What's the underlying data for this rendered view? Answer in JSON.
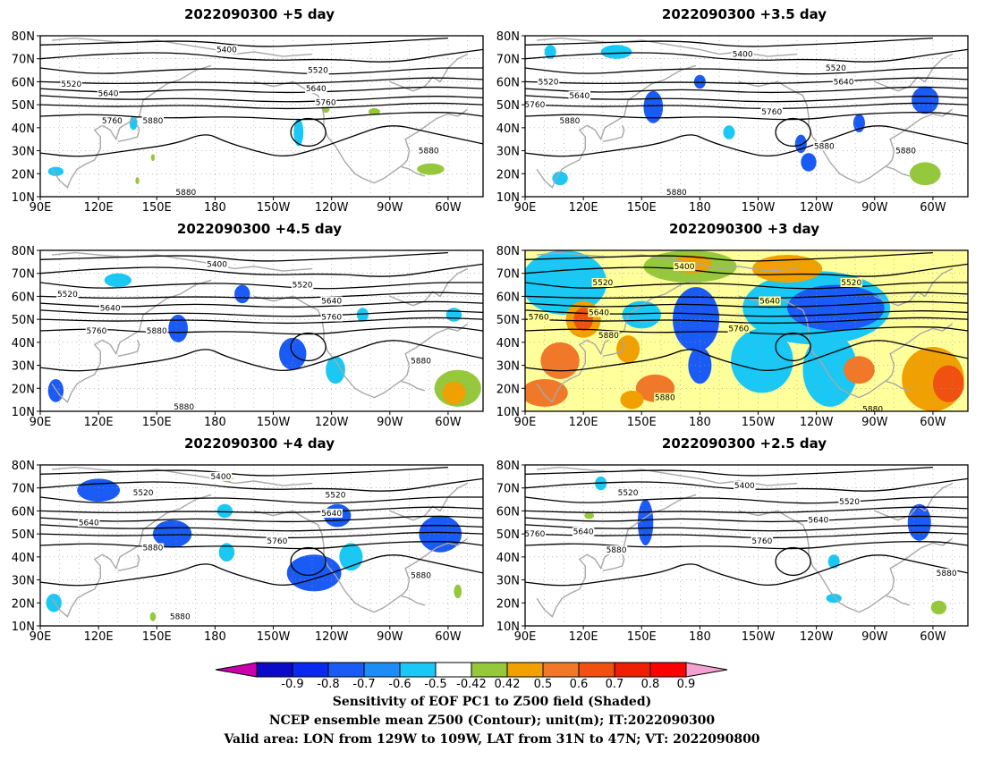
{
  "colors": {
    "coast": "#a8a8a8",
    "contour": "#000000",
    "scale": [
      "#cc00aa",
      "#0a0ac8",
      "#0a28f0",
      "#1a5af5",
      "#1e8cf5",
      "#19c8f5",
      "#ffffff",
      "#96c83c",
      "#f0a000",
      "#f07828",
      "#f05010",
      "#f01e00",
      "#ff0000",
      "#f5a0d2"
    ]
  },
  "map": {
    "lat_labels": [
      "80N",
      "70N",
      "60N",
      "50N",
      "40N",
      "30N",
      "20N",
      "10N"
    ],
    "lon_labels": [
      "90E",
      "120E",
      "150E",
      "180",
      "150W",
      "120W",
      "90W",
      "60W"
    ]
  },
  "panels": [
    {
      "title": "2022090300  +5 day",
      "contour_labels": [
        {
          "text": "5400",
          "lon": 186,
          "lat": 74
        },
        {
          "text": "5520",
          "lon": 233,
          "lat": 65
        },
        {
          "text": "5520",
          "lon": 106,
          "lat": 59
        },
        {
          "text": "5640",
          "lon": 125,
          "lat": 55
        },
        {
          "text": "5640",
          "lon": 232,
          "lat": 57
        },
        {
          "text": "5760",
          "lon": 237,
          "lat": 51
        },
        {
          "text": "5760",
          "lon": 127,
          "lat": 43
        },
        {
          "text": "5880",
          "lon": 148,
          "lat": 43
        },
        {
          "text": "5880",
          "lon": 290,
          "lat": 30
        },
        {
          "text": "5880",
          "lon": 165,
          "lat": 12
        }
      ],
      "blobs": [
        {
          "lon": 138,
          "lat": 42,
          "rx": 2,
          "ry": 3,
          "c": 1
        },
        {
          "lon": 223,
          "lat": 38,
          "rx": 2.5,
          "ry": 6,
          "c": 1
        },
        {
          "lon": 98,
          "lat": 21,
          "rx": 4,
          "ry": 2,
          "c": 1
        },
        {
          "lon": 237,
          "lat": 48,
          "rx": 2,
          "ry": 1.5,
          "c": 0
        },
        {
          "lon": 262,
          "lat": 47,
          "rx": 3,
          "ry": 1.5,
          "c": 0
        },
        {
          "lon": 148,
          "lat": 27,
          "rx": 1,
          "ry": 1.5,
          "c": 0
        },
        {
          "lon": 140,
          "lat": 17,
          "rx": 1,
          "ry": 1.5,
          "c": 0
        },
        {
          "lon": 291,
          "lat": 22,
          "rx": 7,
          "ry": 2.5,
          "c": 0
        }
      ]
    },
    {
      "title": "2022090300  +3.5 day",
      "contour_labels": [
        {
          "text": "5400",
          "lon": 202,
          "lat": 72
        },
        {
          "text": "5520",
          "lon": 250,
          "lat": 66
        },
        {
          "text": "5520",
          "lon": 102,
          "lat": 60
        },
        {
          "text": "5640",
          "lon": 118,
          "lat": 54
        },
        {
          "text": "5640",
          "lon": 254,
          "lat": 60
        },
        {
          "text": "5760",
          "lon": 95,
          "lat": 50
        },
        {
          "text": "5760",
          "lon": 217,
          "lat": 47
        },
        {
          "text": "5880",
          "lon": 113,
          "lat": 43
        },
        {
          "text": "5880",
          "lon": 244,
          "lat": 32
        },
        {
          "text": "5880",
          "lon": 286,
          "lat": 30
        },
        {
          "text": "5880",
          "lon": 168,
          "lat": 12
        }
      ],
      "blobs": [
        {
          "lon": 103,
          "lat": 73,
          "rx": 3,
          "ry": 3,
          "c": 1
        },
        {
          "lon": 137,
          "lat": 73,
          "rx": 8,
          "ry": 3,
          "c": 1
        },
        {
          "lon": 156,
          "lat": 49,
          "rx": 5,
          "ry": 7,
          "c": 2
        },
        {
          "lon": 180,
          "lat": 60,
          "rx": 3,
          "ry": 3,
          "c": 2
        },
        {
          "lon": 195,
          "lat": 38,
          "rx": 3,
          "ry": 3,
          "c": 1
        },
        {
          "lon": 232,
          "lat": 33,
          "rx": 3,
          "ry": 4,
          "c": 2
        },
        {
          "lon": 262,
          "lat": 42,
          "rx": 3,
          "ry": 4,
          "c": 2
        },
        {
          "lon": 296,
          "lat": 52,
          "rx": 7,
          "ry": 6,
          "c": 2
        },
        {
          "lon": 236,
          "lat": 25,
          "rx": 4,
          "ry": 4,
          "c": 2
        },
        {
          "lon": 108,
          "lat": 18,
          "rx": 4,
          "ry": 3,
          "c": 1
        },
        {
          "lon": 296,
          "lat": 20,
          "rx": 8,
          "ry": 5,
          "c": 0
        }
      ]
    },
    {
      "title": "2022090300  +4.5 day",
      "contour_labels": [
        {
          "text": "5400",
          "lon": 181,
          "lat": 74
        },
        {
          "text": "5520",
          "lon": 225,
          "lat": 65
        },
        {
          "text": "5520",
          "lon": 104,
          "lat": 61
        },
        {
          "text": "5640",
          "lon": 126,
          "lat": 55
        },
        {
          "text": "5640",
          "lon": 240,
          "lat": 58
        },
        {
          "text": "5760",
          "lon": 240,
          "lat": 51
        },
        {
          "text": "5760",
          "lon": 119,
          "lat": 45
        },
        {
          "text": "5880",
          "lon": 150,
          "lat": 45
        },
        {
          "text": "5880",
          "lon": 286,
          "lat": 32
        },
        {
          "text": "5880",
          "lon": 164,
          "lat": 12
        }
      ],
      "blobs": [
        {
          "lon": 130,
          "lat": 67,
          "rx": 7,
          "ry": 3,
          "c": 1
        },
        {
          "lon": 194,
          "lat": 61,
          "rx": 4,
          "ry": 4,
          "c": 2
        },
        {
          "lon": 161,
          "lat": 46,
          "rx": 5,
          "ry": 6,
          "c": 2
        },
        {
          "lon": 220,
          "lat": 35,
          "rx": 7,
          "ry": 7,
          "c": 2
        },
        {
          "lon": 242,
          "lat": 28,
          "rx": 5,
          "ry": 6,
          "c": 1
        },
        {
          "lon": 256,
          "lat": 52,
          "rx": 3,
          "ry": 3,
          "c": 1
        },
        {
          "lon": 303,
          "lat": 52,
          "rx": 4,
          "ry": 3,
          "c": 1
        },
        {
          "lon": 98,
          "lat": 19,
          "rx": 4,
          "ry": 5,
          "c": 2
        },
        {
          "lon": 305,
          "lat": 20,
          "rx": 12,
          "ry": 8,
          "c": 0
        },
        {
          "lon": 303,
          "lat": 18,
          "rx": 6,
          "ry": 5,
          "c": 3
        }
      ]
    },
    {
      "title": "2022090300  +3 day",
      "contour_labels": [
        {
          "text": "5400",
          "lon": 172,
          "lat": 73
        },
        {
          "text": "5520",
          "lon": 130,
          "lat": 66
        },
        {
          "text": "5520",
          "lon": 258,
          "lat": 66
        },
        {
          "text": "5640",
          "lon": 128,
          "lat": 53
        },
        {
          "text": "5640",
          "lon": 216,
          "lat": 58
        },
        {
          "text": "5760",
          "lon": 97,
          "lat": 51
        },
        {
          "text": "5760",
          "lon": 200,
          "lat": 46
        },
        {
          "text": "5880",
          "lon": 133,
          "lat": 43
        },
        {
          "text": "5880",
          "lon": 162,
          "lat": 16
        },
        {
          "text": "5880",
          "lon": 269,
          "lat": 11
        }
      ],
      "background": "#ffff9c",
      "blobs": [
        {
          "lon": 110,
          "lat": 66,
          "rx": 22,
          "ry": 14,
          "c": 1
        },
        {
          "lon": 240,
          "lat": 55,
          "rx": 38,
          "ry": 16,
          "c": 1
        },
        {
          "lon": 250,
          "lat": 55,
          "rx": 25,
          "ry": 10,
          "c": 2
        },
        {
          "lon": 178,
          "lat": 50,
          "rx": 12,
          "ry": 14,
          "c": 2
        },
        {
          "lon": 150,
          "lat": 52,
          "rx": 10,
          "ry": 6,
          "c": 1
        },
        {
          "lon": 212,
          "lat": 32,
          "rx": 16,
          "ry": 14,
          "c": 1
        },
        {
          "lon": 247,
          "lat": 28,
          "rx": 14,
          "ry": 16,
          "c": 1
        },
        {
          "lon": 180,
          "lat": 30,
          "rx": 6,
          "ry": 8,
          "c": 2
        },
        {
          "lon": 175,
          "lat": 73,
          "rx": 24,
          "ry": 7,
          "c": 0
        },
        {
          "lon": 225,
          "lat": 72,
          "rx": 18,
          "ry": 6,
          "c": 3
        },
        {
          "lon": 176,
          "lat": 74,
          "rx": 10,
          "ry": 4,
          "c": 3
        },
        {
          "lon": 120,
          "lat": 50,
          "rx": 9,
          "ry": 8,
          "c": 3
        },
        {
          "lon": 120,
          "lat": 50,
          "rx": 5,
          "ry": 5,
          "c": 4
        },
        {
          "lon": 143,
          "lat": 37,
          "rx": 6,
          "ry": 6,
          "c": 3
        },
        {
          "lon": 108,
          "lat": 32,
          "rx": 10,
          "ry": 8,
          "c": 5
        },
        {
          "lon": 157,
          "lat": 20,
          "rx": 10,
          "ry": 6,
          "c": 5
        },
        {
          "lon": 145,
          "lat": 15,
          "rx": 6,
          "ry": 4,
          "c": 3
        },
        {
          "lon": 300,
          "lat": 24,
          "rx": 16,
          "ry": 14,
          "c": 3
        },
        {
          "lon": 308,
          "lat": 22,
          "rx": 8,
          "ry": 8,
          "c": 4
        },
        {
          "lon": 262,
          "lat": 28,
          "rx": 8,
          "ry": 6,
          "c": 5
        },
        {
          "lon": 100,
          "lat": 18,
          "rx": 12,
          "ry": 6,
          "c": 5
        }
      ]
    },
    {
      "title": "2022090300  +4 day",
      "contour_labels": [
        {
          "text": "5400",
          "lon": 183,
          "lat": 75
        },
        {
          "text": "5520",
          "lon": 143,
          "lat": 68
        },
        {
          "text": "5520",
          "lon": 242,
          "lat": 67
        },
        {
          "text": "5640",
          "lon": 115,
          "lat": 55
        },
        {
          "text": "5640",
          "lon": 240,
          "lat": 59
        },
        {
          "text": "5760",
          "lon": 212,
          "lat": 47
        },
        {
          "text": "5880",
          "lon": 148,
          "lat": 44
        },
        {
          "text": "5880",
          "lon": 286,
          "lat": 32
        },
        {
          "text": "5880",
          "lon": 162,
          "lat": 14
        }
      ],
      "blobs": [
        {
          "lon": 120,
          "lat": 69,
          "rx": 11,
          "ry": 5,
          "c": 2
        },
        {
          "lon": 158,
          "lat": 50,
          "rx": 10,
          "ry": 6,
          "c": 2
        },
        {
          "lon": 185,
          "lat": 60,
          "rx": 4,
          "ry": 3,
          "c": 1
        },
        {
          "lon": 186,
          "lat": 42,
          "rx": 4,
          "ry": 4,
          "c": 1
        },
        {
          "lon": 243,
          "lat": 58,
          "rx": 7,
          "ry": 5,
          "c": 2
        },
        {
          "lon": 296,
          "lat": 50,
          "rx": 11,
          "ry": 8,
          "c": 2
        },
        {
          "lon": 231,
          "lat": 33,
          "rx": 14,
          "ry": 8,
          "c": 2
        },
        {
          "lon": 250,
          "lat": 40,
          "rx": 6,
          "ry": 6,
          "c": 1
        },
        {
          "lon": 97,
          "lat": 20,
          "rx": 4,
          "ry": 4,
          "c": 1
        },
        {
          "lon": 186,
          "lat": 74,
          "rx": 3,
          "ry": 1.5,
          "c": 0
        },
        {
          "lon": 148,
          "lat": 14,
          "rx": 1.5,
          "ry": 2,
          "c": 0
        },
        {
          "lon": 305,
          "lat": 25,
          "rx": 2,
          "ry": 3,
          "c": 0
        }
      ]
    },
    {
      "title": "2022090300  +2.5 day",
      "contour_labels": [
        {
          "text": "5400",
          "lon": 203,
          "lat": 71
        },
        {
          "text": "5520",
          "lon": 143,
          "lat": 68
        },
        {
          "text": "5520",
          "lon": 257,
          "lat": 64
        },
        {
          "text": "5640",
          "lon": 241,
          "lat": 56
        },
        {
          "text": "5640",
          "lon": 120,
          "lat": 51
        },
        {
          "text": "5760",
          "lon": 95,
          "lat": 50
        },
        {
          "text": "5760",
          "lon": 212,
          "lat": 47
        },
        {
          "text": "5880",
          "lon": 137,
          "lat": 43
        },
        {
          "text": "5880",
          "lon": 307,
          "lat": 33
        }
      ],
      "blobs": [
        {
          "lon": 129,
          "lat": 72,
          "rx": 3,
          "ry": 3,
          "c": 1
        },
        {
          "lon": 152,
          "lat": 55,
          "rx": 4,
          "ry": 10,
          "c": 2
        },
        {
          "lon": 293,
          "lat": 55,
          "rx": 6,
          "ry": 8,
          "c": 2
        },
        {
          "lon": 249,
          "lat": 38,
          "rx": 3,
          "ry": 3,
          "c": 1
        },
        {
          "lon": 249,
          "lat": 22,
          "rx": 4,
          "ry": 2,
          "c": 1
        },
        {
          "lon": 123,
          "lat": 58,
          "rx": 2.5,
          "ry": 1.5,
          "c": 0
        },
        {
          "lon": 303,
          "lat": 18,
          "rx": 4,
          "ry": 3,
          "c": 0
        }
      ]
    }
  ],
  "colorbar": {
    "labels": [
      "-0.9",
      "-0.8",
      "-0.7",
      "-0.6",
      "-0.5",
      "-0.42",
      "0.42",
      "0.5",
      "0.6",
      "0.7",
      "0.8",
      "0.9"
    ]
  },
  "footer": {
    "line1": "Sensitivity of EOF PC1 to Z500 field (Shaded)",
    "line2": "NCEP ensemble mean Z500 (Contour); unit(m); IT:2022090300",
    "line3": "Valid area: LON from 129W to 109W, LAT from 31N to 47N; VT: 2022090800"
  }
}
